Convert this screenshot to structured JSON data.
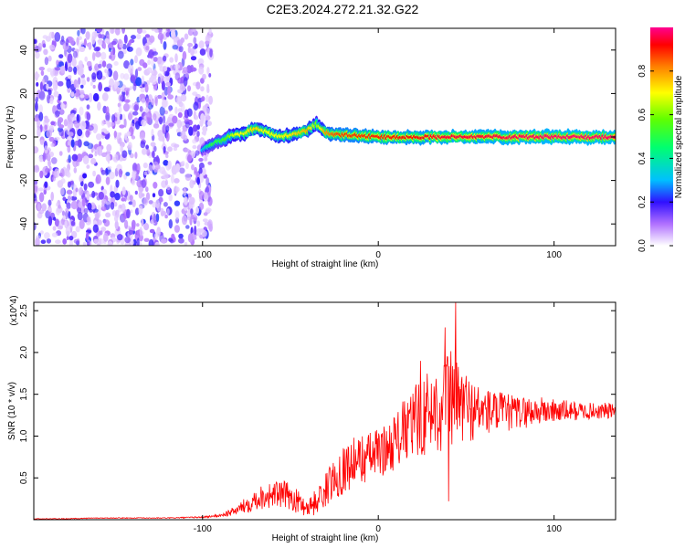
{
  "title": "C2E3.2024.272.21.32.G22",
  "chart_data": [
    {
      "type": "heatmap",
      "title": "C2E3.2024.272.21.32.G22",
      "xlabel": "Height of straight line (km)",
      "ylabel": "Frequency (Hz)",
      "xlim": [
        -196,
        135
      ],
      "ylim": [
        -50,
        50
      ],
      "xticks": [
        -100,
        0,
        100
      ],
      "yticks": [
        -40,
        -20,
        0,
        20,
        40
      ],
      "colorbar": {
        "label": "Normalized spectral amplitude",
        "range": [
          0,
          1
        ],
        "ticks": [
          "0.0",
          "0.2",
          "0.4",
          "0.6",
          "0.8"
        ]
      },
      "noise_region_x": [
        -196,
        -95
      ],
      "ridge": {
        "x": [
          -100,
          -95,
          -90,
          -85,
          -80,
          -75,
          -70,
          -65,
          -60,
          -55,
          -50,
          -45,
          -40,
          -35,
          -30,
          -25,
          -20,
          0,
          20,
          40,
          60,
          80,
          100,
          120,
          135
        ],
        "frequency": [
          -6,
          -3,
          -2,
          0,
          1,
          2,
          4,
          3,
          1,
          0,
          1,
          2,
          3,
          6,
          2,
          1,
          1,
          0,
          0,
          0,
          0,
          0,
          0,
          0,
          0
        ],
        "amplitude": [
          0.3,
          0.5,
          0.5,
          0.6,
          0.7,
          0.7,
          0.75,
          0.7,
          0.7,
          0.7,
          0.72,
          0.75,
          0.78,
          0.6,
          0.8,
          0.85,
          0.88,
          0.9,
          0.92,
          0.95,
          0.95,
          0.97,
          0.98,
          0.98,
          0.98
        ]
      }
    },
    {
      "type": "line",
      "xlabel": "Height of straight line (km)",
      "ylabel": "SNR (10 * v/v)",
      "y_multiplier": "(x10^4)",
      "xlim": [
        -196,
        135
      ],
      "ylim": [
        0,
        2.6
      ],
      "xticks": [
        -100,
        0,
        100
      ],
      "yticks": [
        0.5,
        1.0,
        1.5,
        2.0,
        2.5
      ],
      "ytick_labels": [
        "0.5",
        "1.0",
        "1.5",
        "2.0",
        "2.5"
      ],
      "series": [
        {
          "color": "#ff0000",
          "x": [
            -196,
            -180,
            -160,
            -140,
            -120,
            -100,
            -90,
            -85,
            -80,
            -75,
            -70,
            -65,
            -60,
            -55,
            -50,
            -45,
            -40,
            -35,
            -30,
            -25,
            -20,
            -15,
            -10,
            -5,
            0,
            5,
            10,
            15,
            20,
            25,
            30,
            35,
            40,
            45,
            50,
            55,
            60,
            70,
            80,
            90,
            100,
            110,
            120,
            130,
            135
          ],
          "y": [
            0.01,
            0.01,
            0.02,
            0.02,
            0.02,
            0.03,
            0.05,
            0.08,
            0.12,
            0.18,
            0.25,
            0.28,
            0.3,
            0.3,
            0.28,
            0.2,
            0.15,
            0.22,
            0.35,
            0.5,
            0.6,
            0.68,
            0.72,
            0.76,
            0.8,
            0.85,
            0.95,
            1.05,
            1.15,
            1.25,
            1.3,
            1.35,
            1.45,
            1.4,
            1.35,
            1.3,
            1.3,
            1.28,
            1.28,
            1.3,
            1.3,
            1.3,
            1.3,
            1.3,
            1.3
          ],
          "amplitude": [
            0.005,
            0.005,
            0.005,
            0.005,
            0.005,
            0.01,
            0.02,
            0.04,
            0.06,
            0.1,
            0.14,
            0.15,
            0.16,
            0.17,
            0.16,
            0.14,
            0.12,
            0.16,
            0.2,
            0.25,
            0.3,
            0.3,
            0.3,
            0.3,
            0.3,
            0.3,
            0.35,
            0.4,
            0.45,
            0.5,
            0.5,
            0.55,
            0.6,
            0.55,
            0.45,
            0.35,
            0.3,
            0.25,
            0.2,
            0.18,
            0.15,
            0.12,
            0.1,
            0.1,
            0.1
          ],
          "peaks": [
            {
              "x": 44,
              "y": 2.6
            },
            {
              "x": 38,
              "y": 2.3
            },
            {
              "x": 24,
              "y": 1.9
            },
            {
              "x": 40,
              "y": 0.22
            }
          ]
        }
      ]
    }
  ]
}
